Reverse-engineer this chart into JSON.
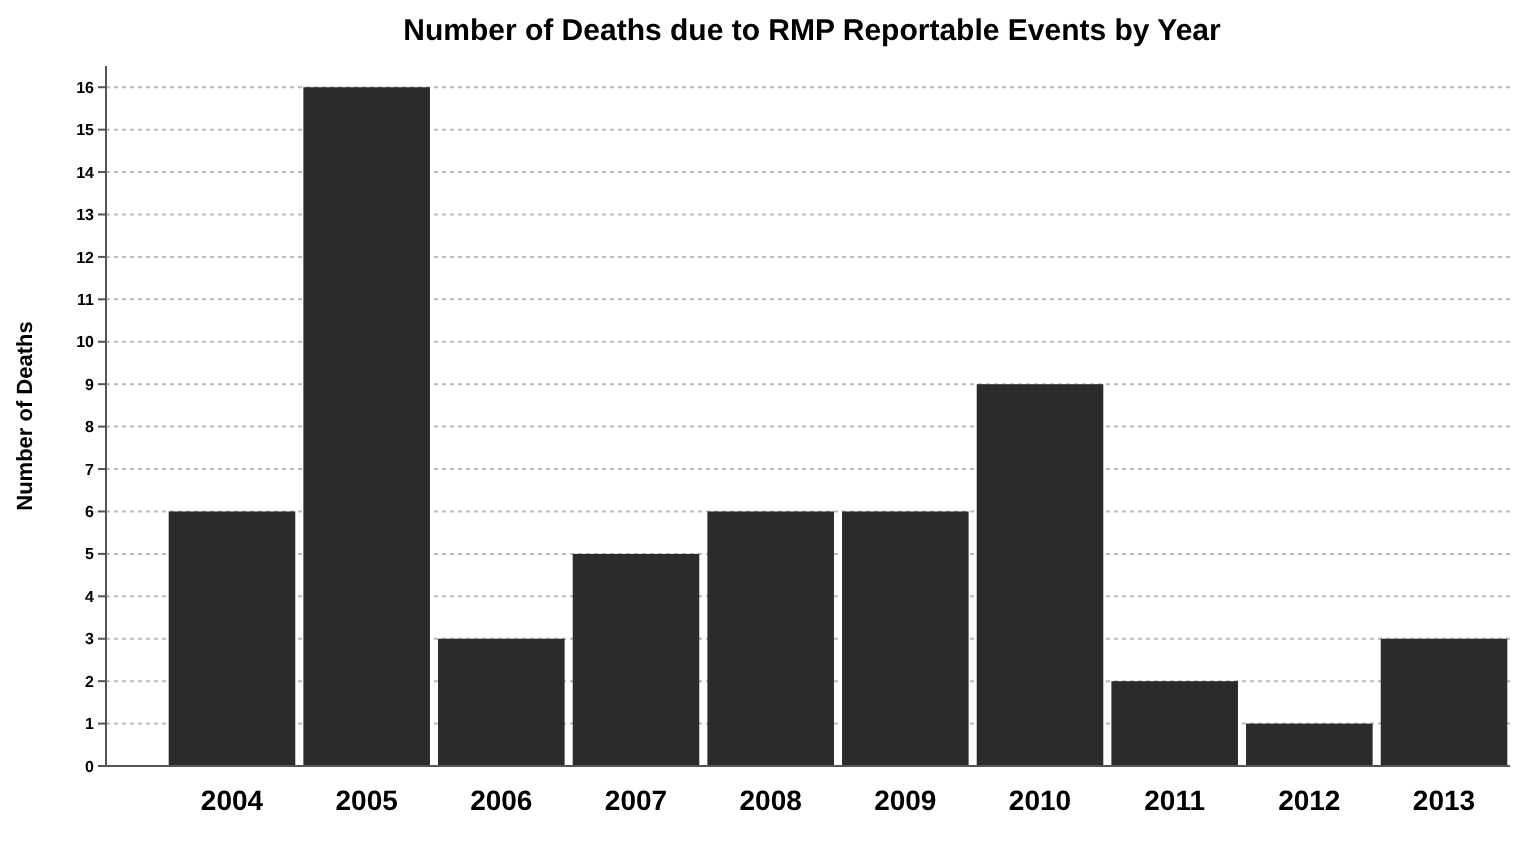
{
  "chart_data": {
    "type": "bar",
    "title": "Number of Deaths due to RMP Reportable Events by Year",
    "ylabel": "Number of Deaths",
    "categories": [
      "2004",
      "2005",
      "2006",
      "2007",
      "2008",
      "2009",
      "2010",
      "2011",
      "2012",
      "2013"
    ],
    "values": [
      6,
      16,
      3,
      5,
      6,
      6,
      9,
      2,
      1,
      3
    ],
    "color": "#2b2b2b",
    "ylim": [
      0,
      16.5
    ],
    "yticks": [
      0,
      1,
      2,
      3,
      4,
      5,
      6,
      7,
      8,
      9,
      10,
      11,
      12,
      13,
      14,
      15,
      16
    ],
    "grid": "y"
  }
}
